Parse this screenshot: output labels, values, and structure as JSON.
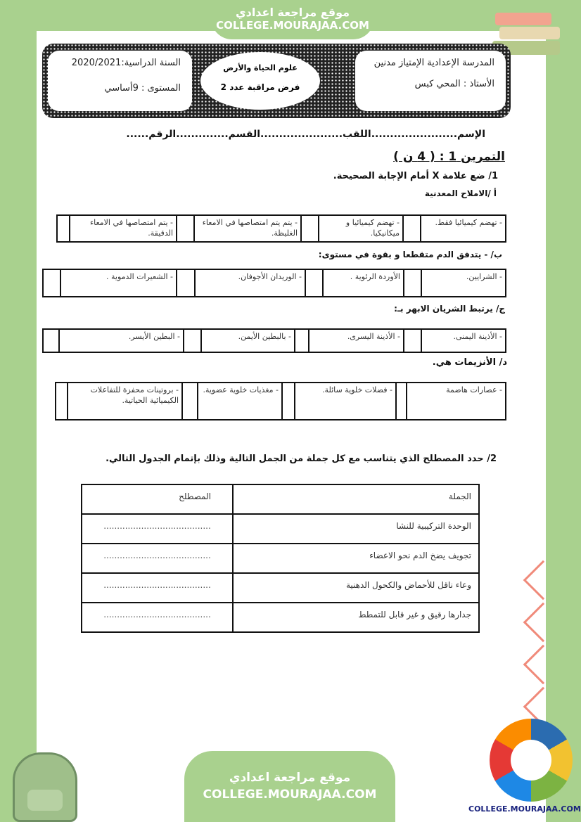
{
  "site": {
    "name_ar": "موقع مراجعة اعدادي",
    "domain": "COLLEGE.MOURAJAA.COM"
  },
  "header": {
    "school": "المدرسة الإعدادية الإمتياز مدنين",
    "teacher": "الأستاذ : المحي كبس",
    "subject": "علوم الحياة والأرض",
    "exam": "فرض مراقبة عدد 2",
    "year": "السنة الدراسية:2020/2021",
    "level": "المستوى : 9أساسي"
  },
  "student_line": "الإسم.......................اللقب......................القسم..............الرقم......",
  "exercise1": {
    "title": "التمرين 1 : ( 4 ن )",
    "instruction": "1/ ضع علامة   X   أمام الإجابة  الصحيحة.",
    "questions": [
      {
        "label": "أ /الاملاح المعدنية",
        "options": [
          "- تهضم كيميائيا فقط.",
          "- تهضم كيميائيا و ميكانيكيا.",
          "- يتم يتم امتصاصها في الامعاء الغليظة.",
          "- يتم امتصاصها في الامعاء الدقيقة."
        ]
      },
      {
        "label": "ب/ - يتدفق الدم متقطعا و بقوة في مستوى:",
        "options": [
          "- الشرايين.",
          "الأوردة الرئوية .",
          "- الوريدان الأجوفان.",
          "- الشعيرات الدموية ."
        ]
      },
      {
        "label": "ج/ يرتبط الشريان الابهر بـ:",
        "options": [
          "- الأذينة اليمنى.",
          "- الأذينة اليسرى.",
          "- بالبطين الأيمن.",
          "- البطين الأيسر."
        ]
      },
      {
        "label": "د/ الأنزيمات هي.",
        "options": [
          "- عصارات هاضمة",
          "- فضلات خلوية سائلة.",
          "- مغذيات خلوية عضوية.",
          "- بروتينات محفزة للتفاعلات الكيميائية الحياتية."
        ]
      }
    ]
  },
  "exercise2": {
    "instruction": "2/ حدد المصطلح الذي يتناسب مع كل جملة من الجمل التالية وذلك بإتمام الجدول التالي.",
    "headers": [
      "الجملة",
      "المصطلح"
    ],
    "rows": [
      [
        "الوحدة التركيبية للنشا",
        "........................................"
      ],
      [
        "تجويف يضخ الدم نحو الاعضاء",
        "........................................"
      ],
      [
        "وعاء ناقل للأحماض والكحول الدهنية",
        "........................................"
      ],
      [
        "جدارها رقيق و غير قابل للتمطط",
        "........................................"
      ]
    ]
  },
  "colors": {
    "frame": "#a9d18e",
    "accent": "#f08a7a"
  }
}
